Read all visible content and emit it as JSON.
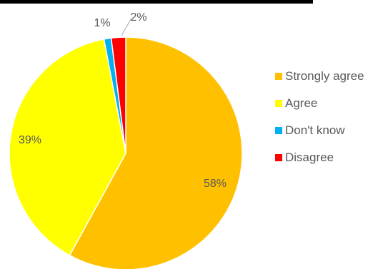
{
  "chart_data": {
    "type": "pie",
    "categories": [
      "Strongly agree",
      "Agree",
      "Don't know",
      "Disagree"
    ],
    "values": [
      58,
      39,
      1,
      2
    ],
    "labels": [
      "58%",
      "39%",
      "1%",
      "2%"
    ],
    "colors": [
      "#FFC000",
      "#FFFF00",
      "#00B0F0",
      "#FF0000"
    ],
    "start_angle_deg": 0,
    "direction": "clockwise",
    "legend_position": "right",
    "title": ""
  }
}
